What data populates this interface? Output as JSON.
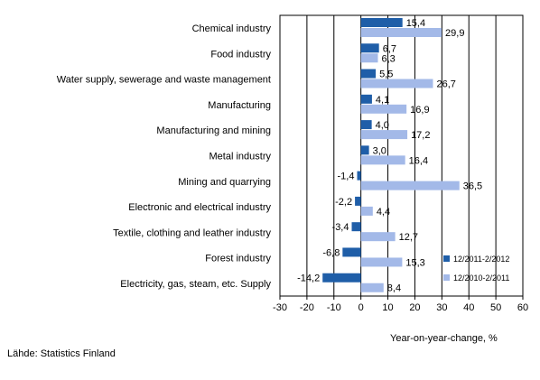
{
  "chart_data": {
    "type": "bar",
    "orientation": "horizontal",
    "categories": [
      "Chemical industry",
      "Food industry",
      "Water supply, sewerage and waste management",
      "Manufacturing",
      "Manufacturing and mining",
      "Metal industry",
      "Mining and quarrying",
      "Electronic and electrical industry",
      "Textile, clothing and leather industry",
      "Forest industry",
      "Electricity, gas, steam, etc. Supply"
    ],
    "series": [
      {
        "name": "12/2011-2/2012",
        "color": "#1f5ea8",
        "values": [
          15.4,
          6.7,
          5.5,
          4.1,
          4.0,
          3.0,
          -1.4,
          -2.2,
          -3.4,
          -6.8,
          -14.2
        ],
        "labels": [
          "15,4",
          "6,7",
          "5,5",
          "4,1",
          "4,0",
          "3,0",
          "-1,4",
          "-2,2",
          "-3,4",
          "-6,8",
          "-14,2"
        ]
      },
      {
        "name": "12/2010-2/2011",
        "color": "#a3b9e8",
        "values": [
          29.9,
          6.3,
          26.7,
          16.9,
          17.2,
          16.4,
          36.5,
          4.4,
          12.7,
          15.3,
          8.4
        ],
        "labels": [
          "29,9",
          "6,3",
          "26,7",
          "16,9",
          "17,2",
          "16,4",
          "36,5",
          "4,4",
          "12,7",
          "15,3",
          "8,4"
        ]
      }
    ],
    "xlim": [
      -30,
      60
    ],
    "xticks": [
      -30,
      -20,
      -10,
      0,
      10,
      20,
      30,
      40,
      50,
      60
    ],
    "xtick_labels": [
      "-30",
      "-20",
      "-10",
      "0",
      "10",
      "20",
      "30",
      "40",
      "50",
      "60"
    ],
    "xlabel": "Year-on-year-change, %",
    "grid": true,
    "legend_position": "bottom-right"
  },
  "source": "Lähde: Statistics Finland"
}
